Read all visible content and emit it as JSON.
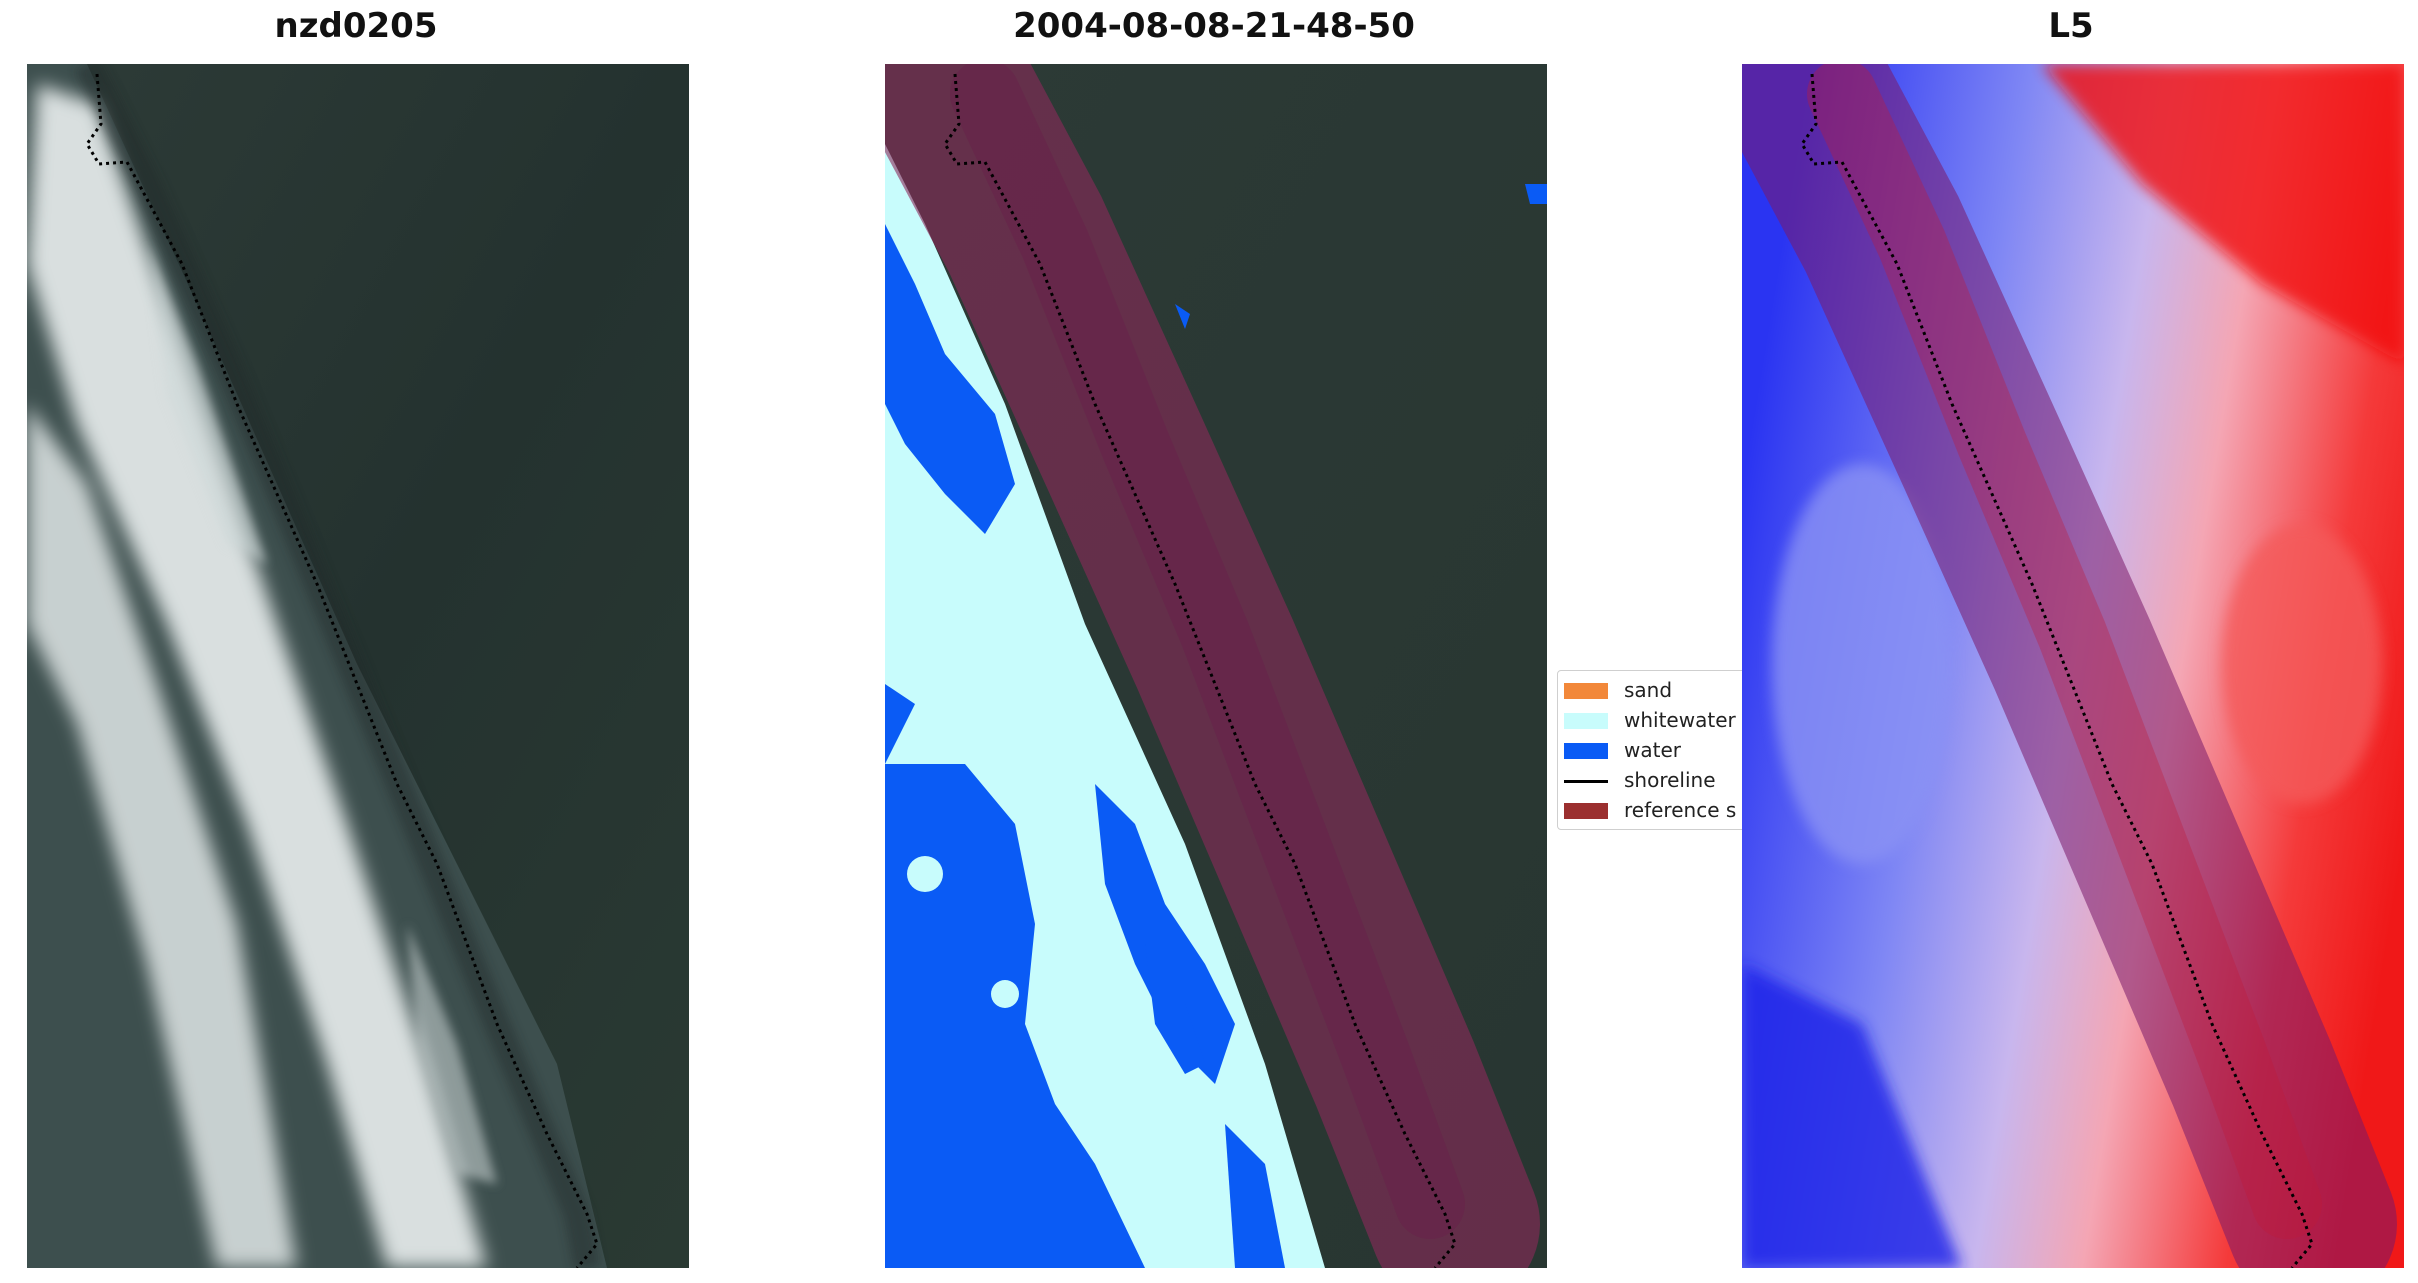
{
  "panels": [
    {
      "title": "nzd0205"
    },
    {
      "title": "2004-08-08-21-48-50"
    },
    {
      "title": "L5"
    }
  ],
  "legend": {
    "items": [
      {
        "label": "sand",
        "color": "#f2883a",
        "kind": "patch"
      },
      {
        "label": "whitewater",
        "color": "#c8fcfc",
        "kind": "patch"
      },
      {
        "label": "water",
        "color": "#0a5bf5",
        "kind": "patch"
      },
      {
        "label": "shoreline",
        "color": "#000000",
        "kind": "line"
      },
      {
        "label": "reference s",
        "color": "#9b2f2f",
        "kind": "patch"
      }
    ]
  },
  "colors": {
    "vegetation": "#2a3a34",
    "surf": "#e8eeee",
    "ocean": "#3a4d4c",
    "whitewater_class": "#c8fcfc",
    "water_class": "#0a5bf5",
    "buffer": "#8c3a5a",
    "land_index": "#f01a1a",
    "water_index": "#1a26f0"
  }
}
